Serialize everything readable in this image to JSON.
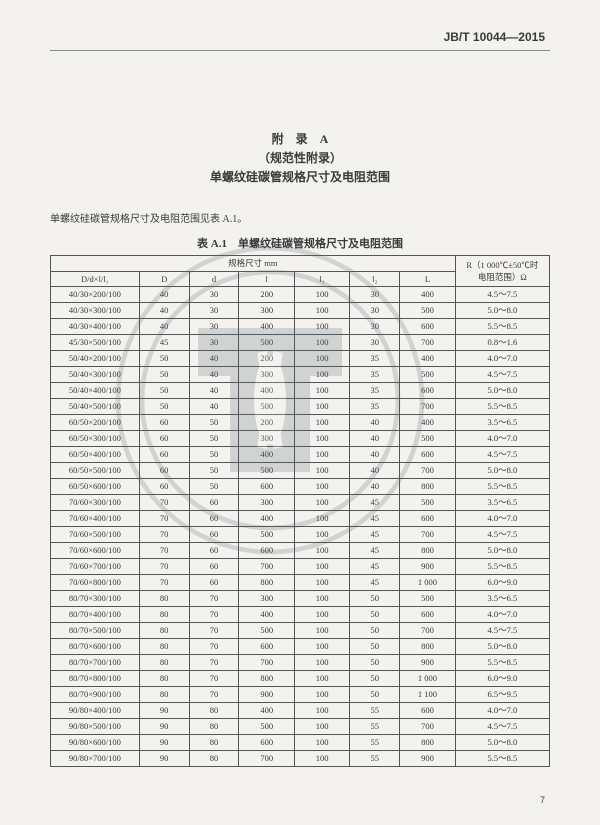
{
  "doc_id": "JB/T 10044—2015",
  "appendix_label": "附　录　A",
  "appendix_type": "（规范性附录）",
  "appendix_title": "单螺纹硅碳管规格尺寸及电阻范围",
  "intro_text": "单螺纹硅碳管规格尺寸及电阻范围见表 A.1。",
  "table_caption": "表 A.1　单螺纹硅碳管规格尺寸及电阻范围",
  "page_number": "7",
  "header": {
    "group_top": "规格尺寸  mm",
    "spec": "D/d×l/l₁",
    "D": "D",
    "d": "d",
    "l": "l",
    "l1": "l₁",
    "l2": "l₂",
    "L": "L",
    "R_top": "R（1 000℃±50℃时",
    "R_bot": "电阻范围）Ω"
  },
  "rows": [
    {
      "spec": "40/30×200/100",
      "D": "40",
      "d": "30",
      "l": "200",
      "l1": "100",
      "l2": "30",
      "L": "400",
      "R": "4.5～7.5"
    },
    {
      "spec": "40/30×300/100",
      "D": "40",
      "d": "30",
      "l": "300",
      "l1": "100",
      "l2": "30",
      "L": "500",
      "R": "5.0～8.0"
    },
    {
      "spec": "40/30×400/100",
      "D": "40",
      "d": "30",
      "l": "400",
      "l1": "100",
      "l2": "30",
      "L": "600",
      "R": "5.5～8.5"
    },
    {
      "spec": "45/30×500/100",
      "D": "45",
      "d": "30",
      "l": "500",
      "l1": "100",
      "l2": "30",
      "L": "700",
      "R": "0.8～1.6"
    },
    {
      "spec": "50/40×200/100",
      "D": "50",
      "d": "40",
      "l": "200",
      "l1": "100",
      "l2": "35",
      "L": "400",
      "R": "4.0～7.0"
    },
    {
      "spec": "50/40×300/100",
      "D": "50",
      "d": "40",
      "l": "300",
      "l1": "100",
      "l2": "35",
      "L": "500",
      "R": "4.5～7.5"
    },
    {
      "spec": "50/40×400/100",
      "D": "50",
      "d": "40",
      "l": "400",
      "l1": "100",
      "l2": "35",
      "L": "600",
      "R": "5.0～8.0"
    },
    {
      "spec": "50/40×500/100",
      "D": "50",
      "d": "40",
      "l": "500",
      "l1": "100",
      "l2": "35",
      "L": "700",
      "R": "5.5～8.5"
    },
    {
      "spec": "60/50×200/100",
      "D": "60",
      "d": "50",
      "l": "200",
      "l1": "100",
      "l2": "40",
      "L": "400",
      "R": "3.5～6.5"
    },
    {
      "spec": "60/50×300/100",
      "D": "60",
      "d": "50",
      "l": "300",
      "l1": "100",
      "l2": "40",
      "L": "500",
      "R": "4.0～7.0"
    },
    {
      "spec": "60/50×400/100",
      "D": "60",
      "d": "50",
      "l": "400",
      "l1": "100",
      "l2": "40",
      "L": "600",
      "R": "4.5～7.5"
    },
    {
      "spec": "60/50×500/100",
      "D": "60",
      "d": "50",
      "l": "500",
      "l1": "100",
      "l2": "40",
      "L": "700",
      "R": "5.0～8.0"
    },
    {
      "spec": "60/50×600/100",
      "D": "60",
      "d": "50",
      "l": "600",
      "l1": "100",
      "l2": "40",
      "L": "800",
      "R": "5.5～8.5"
    },
    {
      "spec": "70/60×300/100",
      "D": "70",
      "d": "60",
      "l": "300",
      "l1": "100",
      "l2": "45",
      "L": "500",
      "R": "3.5～6.5"
    },
    {
      "spec": "70/60×400/100",
      "D": "70",
      "d": "60",
      "l": "400",
      "l1": "100",
      "l2": "45",
      "L": "600",
      "R": "4.0～7.0"
    },
    {
      "spec": "70/60×500/100",
      "D": "70",
      "d": "60",
      "l": "500",
      "l1": "100",
      "l2": "45",
      "L": "700",
      "R": "4.5～7.5"
    },
    {
      "spec": "70/60×600/100",
      "D": "70",
      "d": "60",
      "l": "600",
      "l1": "100",
      "l2": "45",
      "L": "800",
      "R": "5.0～8.0"
    },
    {
      "spec": "70/60×700/100",
      "D": "70",
      "d": "60",
      "l": "700",
      "l1": "100",
      "l2": "45",
      "L": "900",
      "R": "5.5～8.5"
    },
    {
      "spec": "70/60×800/100",
      "D": "70",
      "d": "60",
      "l": "800",
      "l1": "100",
      "l2": "45",
      "L": "1 000",
      "R": "6.0～9.0"
    },
    {
      "spec": "80/70×300/100",
      "D": "80",
      "d": "70",
      "l": "300",
      "l1": "100",
      "l2": "50",
      "L": "500",
      "R": "3.5～6.5"
    },
    {
      "spec": "80/70×400/100",
      "D": "80",
      "d": "70",
      "l": "400",
      "l1": "100",
      "l2": "50",
      "L": "600",
      "R": "4.0～7.0"
    },
    {
      "spec": "80/70×500/100",
      "D": "80",
      "d": "70",
      "l": "500",
      "l1": "100",
      "l2": "50",
      "L": "700",
      "R": "4.5～7.5"
    },
    {
      "spec": "80/70×600/100",
      "D": "80",
      "d": "70",
      "l": "600",
      "l1": "100",
      "l2": "50",
      "L": "800",
      "R": "5.0～8.0"
    },
    {
      "spec": "80/70×700/100",
      "D": "80",
      "d": "70",
      "l": "700",
      "l1": "100",
      "l2": "50",
      "L": "900",
      "R": "5.5～8.5"
    },
    {
      "spec": "80/70×800/100",
      "D": "80",
      "d": "70",
      "l": "800",
      "l1": "100",
      "l2": "50",
      "L": "1 000",
      "R": "6.0～9.0"
    },
    {
      "spec": "80/70×900/100",
      "D": "80",
      "d": "70",
      "l": "900",
      "l1": "100",
      "l2": "50",
      "L": "1 100",
      "R": "6.5～9.5"
    },
    {
      "spec": "90/80×400/100",
      "D": "90",
      "d": "80",
      "l": "400",
      "l1": "100",
      "l2": "55",
      "L": "600",
      "R": "4.0～7.0"
    },
    {
      "spec": "90/80×500/100",
      "D": "90",
      "d": "80",
      "l": "500",
      "l1": "100",
      "l2": "55",
      "L": "700",
      "R": "4.5～7.5"
    },
    {
      "spec": "90/80×600/100",
      "D": "90",
      "d": "80",
      "l": "600",
      "l1": "100",
      "l2": "55",
      "L": "800",
      "R": "5.0～8.0"
    },
    {
      "spec": "90/80×700/100",
      "D": "90",
      "d": "80",
      "l": "700",
      "l1": "100",
      "l2": "55",
      "L": "900",
      "R": "5.5～8.5"
    }
  ],
  "watermark": {
    "stroke": "#5a6a78",
    "fill": "#5a6a78"
  }
}
